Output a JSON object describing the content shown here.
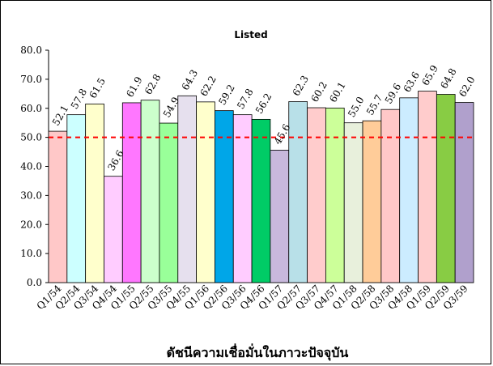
{
  "chart_data": {
    "type": "bar",
    "title": "Listed",
    "xlabel": "ดัชนีความเชื่อมั่นในภาวะปัจจุบัน",
    "ylabel": "",
    "ylim": [
      0,
      80
    ],
    "yticks": [
      "0.0",
      "10.0",
      "20.0",
      "30.0",
      "40.0",
      "50.0",
      "60.0",
      "70.0",
      "80.0"
    ],
    "reference_line": {
      "value": 50,
      "color": "#ff0000",
      "style": "dashed"
    },
    "categories": [
      "Q1/54",
      "Q2/54",
      "Q3/54",
      "Q4/54",
      "Q1/55",
      "Q2/55",
      "Q3/55",
      "Q4/55",
      "Q1/56",
      "Q2/56",
      "Q3/56",
      "Q4/56",
      "Q1/57",
      "Q2/57",
      "Q3/57",
      "Q4/57",
      "Q1/58",
      "Q2/58",
      "Q3/58",
      "Q4/58",
      "Q1/59",
      "Q2/59",
      "Q3/59"
    ],
    "values": [
      52.1,
      57.8,
      61.5,
      36.6,
      61.9,
      62.8,
      54.9,
      64.3,
      62.2,
      59.2,
      57.8,
      56.2,
      45.6,
      62.3,
      60.2,
      60.1,
      55.0,
      55.7,
      59.6,
      63.6,
      65.9,
      64.8,
      62.0
    ],
    "labels": [
      "52.1",
      "57.8",
      "61.5",
      "36.6",
      "61.9",
      "62.8",
      "54.9",
      "64.3",
      "62.2",
      "59.2",
      "57.8",
      "56.2",
      "45.6",
      "62.3",
      "60.2",
      "60.1",
      "55.0",
      "55.7",
      "59.6",
      "63.6",
      "65.9",
      "64.8",
      "62.0"
    ],
    "colors": [
      "#ffc8c8",
      "#ccffff",
      "#ffffcc",
      "#ffccff",
      "#ff77ff",
      "#ccffcc",
      "#99ff99",
      "#e6e0ee",
      "#ffffcc",
      "#00a6e8",
      "#ffccff",
      "#00cc66",
      "#c8b8dc",
      "#b8e0e8",
      "#ffcccc",
      "#ccff99",
      "#e8f0dc",
      "#ffcc99",
      "#ffc8c8",
      "#ccecff",
      "#ffcccc",
      "#88cc44",
      "#b0a0cc"
    ],
    "grid": false,
    "legend": "none"
  }
}
